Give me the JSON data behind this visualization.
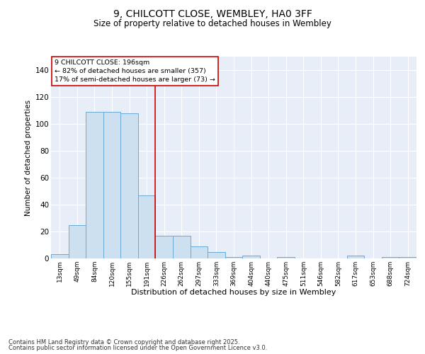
{
  "title_line1": "9, CHILCOTT CLOSE, WEMBLEY, HA0 3FF",
  "title_line2": "Size of property relative to detached houses in Wembley",
  "xlabel": "Distribution of detached houses by size in Wembley",
  "ylabel": "Number of detached properties",
  "footnote1": "Contains HM Land Registry data © Crown copyright and database right 2025.",
  "footnote2": "Contains public sector information licensed under the Open Government Licence v3.0.",
  "annotation_line1": "9 CHILCOTT CLOSE: 196sqm",
  "annotation_line2": "← 82% of detached houses are smaller (357)",
  "annotation_line3": "17% of semi-detached houses are larger (73) →",
  "bar_color": "#cce0f0",
  "bar_edge_color": "#6aaad4",
  "redline_color": "#cc0000",
  "background_color": "#e8eef8",
  "grid_color": "#ffffff",
  "categories": [
    "13sqm",
    "49sqm",
    "84sqm",
    "120sqm",
    "155sqm",
    "191sqm",
    "226sqm",
    "262sqm",
    "297sqm",
    "333sqm",
    "369sqm",
    "404sqm",
    "440sqm",
    "475sqm",
    "511sqm",
    "546sqm",
    "582sqm",
    "617sqm",
    "653sqm",
    "688sqm",
    "724sqm"
  ],
  "values": [
    3,
    25,
    109,
    109,
    108,
    47,
    17,
    17,
    9,
    5,
    1,
    2,
    0,
    1,
    0,
    0,
    0,
    2,
    0,
    1,
    1
  ],
  "redline_index": 5,
  "ylim": [
    0,
    150
  ],
  "yticks": [
    0,
    20,
    40,
    60,
    80,
    100,
    120,
    140
  ]
}
